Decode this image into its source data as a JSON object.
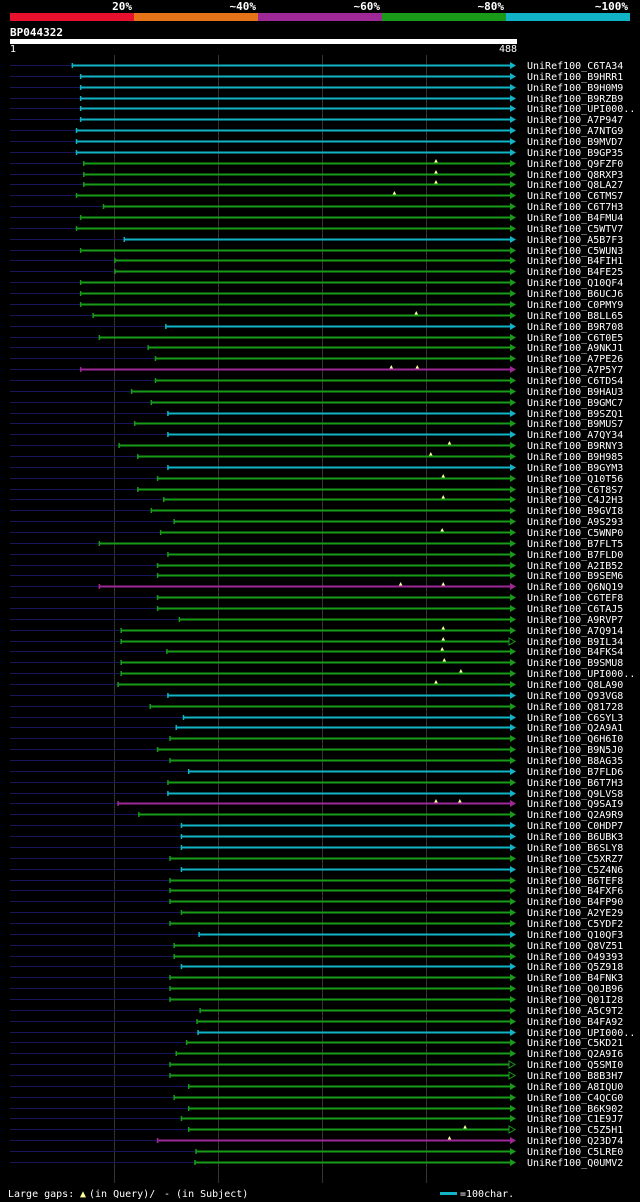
{
  "chart_data": {
    "type": "alignment-overview",
    "query_id": "BP044322",
    "query_start": "1",
    "query_length": 488,
    "query_length_label": "488",
    "identity_legend": [
      {
        "label": "20%",
        "color": "#e8112d"
      },
      {
        "label": "~40%",
        "color": "#e67318"
      },
      {
        "label": "~60%",
        "color": "#9e2896"
      },
      {
        "label": "~80%",
        "color": "#199b19"
      },
      {
        "label": "~100%",
        "color": "#11b4c6"
      }
    ],
    "colors": {
      "cyan": "#11b4c6",
      "green": "#199b19",
      "purple": "#9e2896",
      "navy": "#15155a",
      "grid": "#333333",
      "marker": "#ffff99"
    },
    "hits": [
      {
        "name": "UniRef100_C6TA34",
        "start": 60,
        "color": "cyan",
        "arrow": true,
        "markers": []
      },
      {
        "name": "UniRef100_B9HRR1",
        "start": 68,
        "color": "cyan",
        "arrow": true,
        "markers": []
      },
      {
        "name": "UniRef100_B9H0M9",
        "start": 68,
        "color": "cyan",
        "arrow": true,
        "markers": []
      },
      {
        "name": "UniRef100_B9RZB9",
        "start": 68,
        "color": "cyan",
        "arrow": true,
        "markers": []
      },
      {
        "name": "UniRef100_UPI000..",
        "start": 68,
        "color": "cyan",
        "arrow": true,
        "markers": []
      },
      {
        "name": "UniRef100_A7P947",
        "start": 68,
        "color": "cyan",
        "arrow": true,
        "markers": []
      },
      {
        "name": "UniRef100_A7NTG9",
        "start": 64,
        "color": "cyan",
        "arrow": true,
        "markers": []
      },
      {
        "name": "UniRef100_B9MVD7",
        "start": 64,
        "color": "cyan",
        "arrow": true,
        "markers": []
      },
      {
        "name": "UniRef100_B9GP35",
        "start": 64,
        "color": "cyan",
        "arrow": true,
        "markers": []
      },
      {
        "name": "UniRef100_Q9FZF0",
        "start": 71,
        "color": "green",
        "arrow": true,
        "markers": [
          410
        ]
      },
      {
        "name": "UniRef100_Q8RXP3",
        "start": 71,
        "color": "green",
        "arrow": true,
        "markers": [
          410
        ]
      },
      {
        "name": "UniRef100_Q8LA27",
        "start": 71,
        "color": "green",
        "arrow": true,
        "markers": [
          410
        ]
      },
      {
        "name": "UniRef100_C6TMS7",
        "start": 64,
        "color": "green",
        "arrow": true,
        "markers": [
          370
        ]
      },
      {
        "name": "UniRef100_C6T7H3",
        "start": 90,
        "color": "green",
        "arrow": true,
        "markers": []
      },
      {
        "name": "UniRef100_B4FMU4",
        "start": 68,
        "color": "green",
        "arrow": true,
        "markers": []
      },
      {
        "name": "UniRef100_C5WTV7",
        "start": 64,
        "color": "green",
        "arrow": true,
        "markers": []
      },
      {
        "name": "UniRef100_A5B7F3",
        "start": 110,
        "color": "cyan",
        "arrow": true,
        "markers": []
      },
      {
        "name": "UniRef100_C5WUN3",
        "start": 68,
        "color": "green",
        "arrow": true,
        "markers": []
      },
      {
        "name": "UniRef100_B4FIH1",
        "start": 101,
        "color": "green",
        "arrow": true,
        "markers": []
      },
      {
        "name": "UniRef100_B4FE25",
        "start": 101,
        "color": "green",
        "arrow": true,
        "markers": []
      },
      {
        "name": "UniRef100_Q10QF4",
        "start": 68,
        "color": "green",
        "arrow": true,
        "markers": []
      },
      {
        "name": "UniRef100_B6UCJ6",
        "start": 68,
        "color": "green",
        "arrow": true,
        "markers": []
      },
      {
        "name": "UniRef100_C0PMY9",
        "start": 68,
        "color": "green",
        "arrow": true,
        "markers": []
      },
      {
        "name": "UniRef100_B8LL65",
        "start": 80,
        "color": "green",
        "arrow": true,
        "markers": [
          391
        ]
      },
      {
        "name": "UniRef100_B9R708",
        "start": 150,
        "color": "cyan",
        "arrow": true,
        "markers": []
      },
      {
        "name": "UniRef100_C6T0E5",
        "start": 86,
        "color": "green",
        "arrow": true,
        "markers": []
      },
      {
        "name": "UniRef100_A9NKJ1",
        "start": 133,
        "color": "green",
        "arrow": true,
        "markers": []
      },
      {
        "name": "UniRef100_A7PE26",
        "start": 140,
        "color": "green",
        "arrow": true,
        "markers": []
      },
      {
        "name": "UniRef100_A7P5Y7",
        "start": 68,
        "color": "purple",
        "arrow": true,
        "markers": [
          367,
          392
        ]
      },
      {
        "name": "UniRef100_C6TDS4",
        "start": 140,
        "color": "green",
        "arrow": true,
        "markers": []
      },
      {
        "name": "UniRef100_B9HAU3",
        "start": 117,
        "color": "green",
        "arrow": true,
        "markers": []
      },
      {
        "name": "UniRef100_B9GMC7",
        "start": 136,
        "color": "green",
        "arrow": true,
        "markers": []
      },
      {
        "name": "UniRef100_B9SZQ1",
        "start": 152,
        "color": "cyan",
        "arrow": true,
        "markers": []
      },
      {
        "name": "UniRef100_B9MUS7",
        "start": 120,
        "color": "green",
        "arrow": true,
        "markers": []
      },
      {
        "name": "UniRef100_A7QY34",
        "start": 152,
        "color": "cyan",
        "arrow": true,
        "markers": []
      },
      {
        "name": "UniRef100_B9RNY3",
        "start": 105,
        "color": "green",
        "arrow": true,
        "markers": [
          423
        ]
      },
      {
        "name": "UniRef100_B9H985",
        "start": 123,
        "color": "green",
        "arrow": true,
        "markers": [
          405
        ]
      },
      {
        "name": "UniRef100_B9GYM3",
        "start": 152,
        "color": "cyan",
        "arrow": true,
        "markers": []
      },
      {
        "name": "UniRef100_Q10T56",
        "start": 142,
        "color": "green",
        "arrow": true,
        "markers": [
          417
        ]
      },
      {
        "name": "UniRef100_C6T8S7",
        "start": 123,
        "color": "green",
        "arrow": true,
        "markers": []
      },
      {
        "name": "UniRef100_C4J2H3",
        "start": 148,
        "color": "green",
        "arrow": true,
        "markers": [
          417
        ]
      },
      {
        "name": "UniRef100_B9GVI8",
        "start": 136,
        "color": "green",
        "arrow": true,
        "markers": []
      },
      {
        "name": "UniRef100_A9S293",
        "start": 158,
        "color": "green",
        "arrow": true,
        "markers": []
      },
      {
        "name": "UniRef100_C5WNP0",
        "start": 145,
        "color": "green",
        "arrow": true,
        "markers": [
          416
        ]
      },
      {
        "name": "UniRef100_B7FLT5",
        "start": 86,
        "color": "green",
        "arrow": true,
        "markers": []
      },
      {
        "name": "UniRef100_B7FLD0",
        "start": 152,
        "color": "green",
        "arrow": true,
        "markers": []
      },
      {
        "name": "UniRef100_A2IB52",
        "start": 142,
        "color": "green",
        "arrow": true,
        "markers": []
      },
      {
        "name": "UniRef100_B9SEM6",
        "start": 142,
        "color": "green",
        "arrow": true,
        "markers": []
      },
      {
        "name": "UniRef100_Q6NQ19",
        "start": 86,
        "color": "purple",
        "arrow": true,
        "markers": [
          376,
          417
        ]
      },
      {
        "name": "UniRef100_C6TEF8",
        "start": 142,
        "color": "green",
        "arrow": true,
        "markers": []
      },
      {
        "name": "UniRef100_C6TAJ5",
        "start": 142,
        "color": "green",
        "arrow": true,
        "markers": []
      },
      {
        "name": "UniRef100_A9RVP7",
        "start": 163,
        "color": "green",
        "arrow": true,
        "markers": []
      },
      {
        "name": "UniRef100_A7Q914",
        "start": 107,
        "color": "green",
        "arrow": true,
        "markers": [
          417
        ]
      },
      {
        "name": "UniRef100_B9IL34",
        "start": 107,
        "color": "green",
        "arrow": false,
        "markers": [
          417
        ]
      },
      {
        "name": "UniRef100_B4FKS4",
        "start": 151,
        "color": "green",
        "arrow": true,
        "markers": [
          416
        ]
      },
      {
        "name": "UniRef100_B9SMU8",
        "start": 107,
        "color": "green",
        "arrow": true,
        "markers": [
          418
        ]
      },
      {
        "name": "UniRef100_UPI000..",
        "start": 107,
        "color": "green",
        "arrow": true,
        "markers": [
          434
        ]
      },
      {
        "name": "UniRef100_Q8LA90",
        "start": 104,
        "color": "green",
        "arrow": true,
        "markers": [
          410
        ]
      },
      {
        "name": "UniRef100_Q93VG8",
        "start": 152,
        "color": "cyan",
        "arrow": true,
        "markers": []
      },
      {
        "name": "UniRef100_Q81728",
        "start": 135,
        "color": "green",
        "arrow": true,
        "markers": []
      },
      {
        "name": "UniRef100_C6SYL3",
        "start": 167,
        "color": "cyan",
        "arrow": true,
        "markers": []
      },
      {
        "name": "UniRef100_Q2A9A1",
        "start": 160,
        "color": "cyan",
        "arrow": true,
        "markers": []
      },
      {
        "name": "UniRef100_Q6H6I0",
        "start": 154,
        "color": "green",
        "arrow": true,
        "markers": []
      },
      {
        "name": "UniRef100_B9N5J0",
        "start": 142,
        "color": "green",
        "arrow": true,
        "markers": []
      },
      {
        "name": "UniRef100_B8AG35",
        "start": 154,
        "color": "green",
        "arrow": true,
        "markers": []
      },
      {
        "name": "UniRef100_B7FLD6",
        "start": 172,
        "color": "cyan",
        "arrow": true,
        "markers": []
      },
      {
        "name": "UniRef100_B6T7H3",
        "start": 152,
        "color": "green",
        "arrow": true,
        "markers": []
      },
      {
        "name": "UniRef100_Q9LVS8",
        "start": 152,
        "color": "cyan",
        "arrow": true,
        "markers": []
      },
      {
        "name": "UniRef100_Q9SAI9",
        "start": 104,
        "color": "purple",
        "arrow": true,
        "markers": [
          410,
          433
        ]
      },
      {
        "name": "UniRef100_Q2A9R9",
        "start": 124,
        "color": "green",
        "arrow": true,
        "markers": []
      },
      {
        "name": "UniRef100_C0HDP7",
        "start": 165,
        "color": "cyan",
        "arrow": true,
        "markers": []
      },
      {
        "name": "UniRef100_B6UBK3",
        "start": 165,
        "color": "cyan",
        "arrow": true,
        "markers": []
      },
      {
        "name": "UniRef100_B6SLY8",
        "start": 165,
        "color": "cyan",
        "arrow": true,
        "markers": []
      },
      {
        "name": "UniRef100_C5XRZ7",
        "start": 154,
        "color": "green",
        "arrow": true,
        "markers": []
      },
      {
        "name": "UniRef100_C5Z4N6",
        "start": 165,
        "color": "cyan",
        "arrow": true,
        "markers": []
      },
      {
        "name": "UniRef100_B6TEF8",
        "start": 154,
        "color": "green",
        "arrow": true,
        "markers": []
      },
      {
        "name": "UniRef100_B4FXF6",
        "start": 154,
        "color": "green",
        "arrow": true,
        "markers": []
      },
      {
        "name": "UniRef100_B4FP90",
        "start": 154,
        "color": "green",
        "arrow": true,
        "markers": []
      },
      {
        "name": "UniRef100_A2YE29",
        "start": 165,
        "color": "green",
        "arrow": true,
        "markers": []
      },
      {
        "name": "UniRef100_C5YDF2",
        "start": 154,
        "color": "green",
        "arrow": true,
        "markers": []
      },
      {
        "name": "UniRef100_Q10QF3",
        "start": 182,
        "color": "cyan",
        "arrow": true,
        "markers": []
      },
      {
        "name": "UniRef100_Q8VZ51",
        "start": 158,
        "color": "green",
        "arrow": true,
        "markers": []
      },
      {
        "name": "UniRef100_O49393",
        "start": 158,
        "color": "green",
        "arrow": true,
        "markers": []
      },
      {
        "name": "UniRef100_Q5Z918",
        "start": 165,
        "color": "cyan",
        "arrow": true,
        "markers": []
      },
      {
        "name": "UniRef100_B4FNK3",
        "start": 154,
        "color": "green",
        "arrow": true,
        "markers": []
      },
      {
        "name": "UniRef100_Q0JB96",
        "start": 154,
        "color": "green",
        "arrow": true,
        "markers": []
      },
      {
        "name": "UniRef100_Q01I28",
        "start": 154,
        "color": "green",
        "arrow": true,
        "markers": []
      },
      {
        "name": "UniRef100_A5C9T2",
        "start": 183,
        "color": "green",
        "arrow": true,
        "markers": []
      },
      {
        "name": "UniRef100_B4FA92",
        "start": 180,
        "color": "green",
        "arrow": true,
        "markers": []
      },
      {
        "name": "UniRef100_UPI000..",
        "start": 181,
        "color": "cyan",
        "arrow": true,
        "markers": []
      },
      {
        "name": "UniRef100_C5KD21",
        "start": 170,
        "color": "green",
        "arrow": true,
        "markers": []
      },
      {
        "name": "UniRef100_Q2A9I6",
        "start": 160,
        "color": "green",
        "arrow": true,
        "markers": []
      },
      {
        "name": "UniRef100_Q5SMI0",
        "start": 154,
        "color": "green",
        "arrow": false,
        "markers": []
      },
      {
        "name": "UniRef100_B8B3H7",
        "start": 154,
        "color": "green",
        "arrow": false,
        "markers": []
      },
      {
        "name": "UniRef100_A8IQU0",
        "start": 172,
        "color": "green",
        "arrow": true,
        "markers": []
      },
      {
        "name": "UniRef100_C4QCG0",
        "start": 158,
        "color": "green",
        "arrow": true,
        "markers": []
      },
      {
        "name": "UniRef100_B6K902",
        "start": 172,
        "color": "green",
        "arrow": true,
        "markers": []
      },
      {
        "name": "UniRef100_C1E9J7",
        "start": 165,
        "color": "green",
        "arrow": true,
        "markers": []
      },
      {
        "name": "UniRef100_C5Z5H1",
        "start": 172,
        "color": "green",
        "arrow": false,
        "markers": [
          438
        ]
      },
      {
        "name": "UniRef100_Q23D74",
        "start": 142,
        "color": "purple",
        "arrow": true,
        "markers": [
          423
        ]
      },
      {
        "name": "UniRef100_C5LRE0",
        "start": 179,
        "color": "green",
        "arrow": true,
        "markers": []
      },
      {
        "name": "UniRef100_Q0UMV2",
        "start": 178,
        "color": "green",
        "arrow": true,
        "markers": []
      }
    ]
  },
  "footer": {
    "label": "Large gaps:",
    "in_query": "(in Query)/",
    "in_subject": "- (in Subject)",
    "scale_text": "=100char."
  }
}
